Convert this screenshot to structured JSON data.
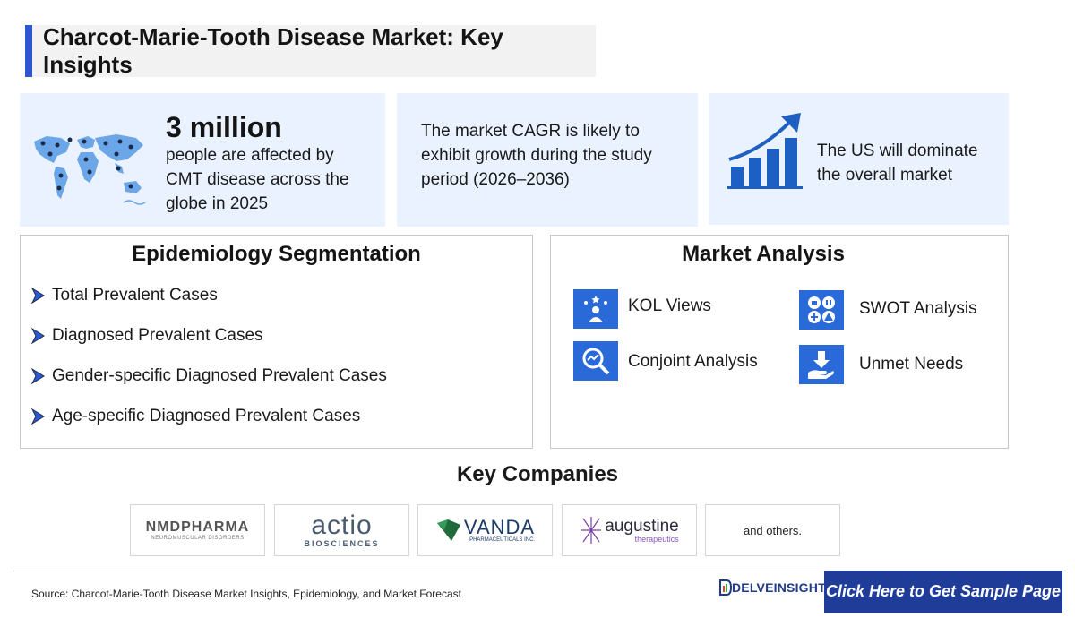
{
  "title": "Charcot-Marie-Tooth Disease Market: Key Insights",
  "insights": {
    "stat_value": "3 million",
    "stat_description": "people are affected by CMT disease across the globe in 2025",
    "cagr": "The market CAGR is likely to exhibit growth during the study period (2026–2036)",
    "dominance": "The US will dominate the overall market"
  },
  "epidemiology": {
    "title": "Epidemiology Segmentation",
    "items": [
      "Total Prevalent Cases",
      "Diagnosed Prevalent Cases",
      "Gender-specific Diagnosed Prevalent Cases",
      "Age-specific Diagnosed Prevalent Cases"
    ]
  },
  "market_analysis": {
    "title": "Market Analysis",
    "items": [
      {
        "label": "KOL Views",
        "icon": "kol-icon"
      },
      {
        "label": "SWOT Analysis",
        "icon": "swot-icon"
      },
      {
        "label": "Conjoint Analysis",
        "icon": "conjoint-icon"
      },
      {
        "label": "Unmet Needs",
        "icon": "unmet-needs-icon"
      }
    ]
  },
  "companies": {
    "title": "Key Companies",
    "logos": [
      {
        "name": "NMDPHARMA",
        "sub": "NEUROMUSCULAR DISORDERS"
      },
      {
        "name": "actio",
        "sub": "BIOSCIENCES"
      },
      {
        "name": "VANDA",
        "sub": "PHARMACEUTICALS INC."
      },
      {
        "name": "augustine",
        "sub": "therapeutics"
      }
    ],
    "others": "and others."
  },
  "footer": {
    "source": "Source: Charcot-Marie-Tooth Disease Market Insights, Epidemiology, and Market Forecast",
    "brand": "DELVEINSIGHT",
    "cta": "Click Here to Get Sample Page"
  },
  "colors": {
    "accent": "#2f55d4",
    "card_bg": "#e9f2fe",
    "icon_blue": "#2a6ad8",
    "cta_bg": "#1f3c99"
  }
}
